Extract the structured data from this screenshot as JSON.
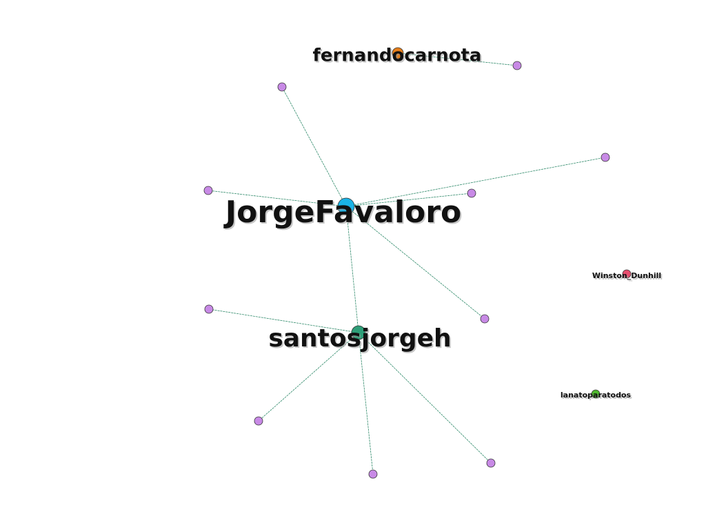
{
  "graph": {
    "colors": {
      "edge": "#2f8a6a",
      "leaf": "#c88ae6",
      "JorgeFavaloro": "#1ab3e6",
      "santosjorgeh": "#2e9e78",
      "fernandocarnota": "#e67e1a",
      "Winston_Dunhill": "#e64d6e",
      "lanatoparatodos": "#4fb82e"
    },
    "nodes": [
      {
        "id": "JorgeFavaloro",
        "label": "JorgeFavaloro",
        "kind": "hub"
      },
      {
        "id": "santosjorgeh",
        "label": "santosjorgeh",
        "kind": "hub"
      },
      {
        "id": "fernandocarnota",
        "label": "fernandocarnota",
        "kind": "hub"
      },
      {
        "id": "Winston_Dunhill",
        "label": "Winston_Dunhill",
        "kind": "isolated"
      },
      {
        "id": "lanatoparatodos",
        "label": "lanatoparatodos",
        "kind": "isolated"
      },
      {
        "id": "leaf1",
        "label": "",
        "kind": "leaf"
      },
      {
        "id": "leaf2",
        "label": "",
        "kind": "leaf"
      },
      {
        "id": "leaf3",
        "label": "",
        "kind": "leaf"
      },
      {
        "id": "leaf4",
        "label": "",
        "kind": "leaf"
      },
      {
        "id": "leaf5",
        "label": "",
        "kind": "leaf"
      },
      {
        "id": "leaf6",
        "label": "",
        "kind": "leaf"
      },
      {
        "id": "leaf7",
        "label": "",
        "kind": "leaf"
      },
      {
        "id": "leaf8",
        "label": "",
        "kind": "leaf"
      },
      {
        "id": "leaf9",
        "label": "",
        "kind": "leaf"
      },
      {
        "id": "leaf10",
        "label": "",
        "kind": "leaf"
      },
      {
        "id": "leaf11",
        "label": "",
        "kind": "leaf"
      }
    ],
    "edges": [
      [
        "fernandocarnota",
        "leaf1"
      ],
      [
        "JorgeFavaloro",
        "leaf2"
      ],
      [
        "JorgeFavaloro",
        "leaf3"
      ],
      [
        "JorgeFavaloro",
        "leaf4"
      ],
      [
        "JorgeFavaloro",
        "leaf5"
      ],
      [
        "JorgeFavaloro",
        "leaf6"
      ],
      [
        "JorgeFavaloro",
        "santosjorgeh"
      ],
      [
        "santosjorgeh",
        "leaf7"
      ],
      [
        "santosjorgeh",
        "leaf8"
      ],
      [
        "santosjorgeh",
        "leaf9"
      ],
      [
        "santosjorgeh",
        "leaf10"
      ]
    ]
  }
}
